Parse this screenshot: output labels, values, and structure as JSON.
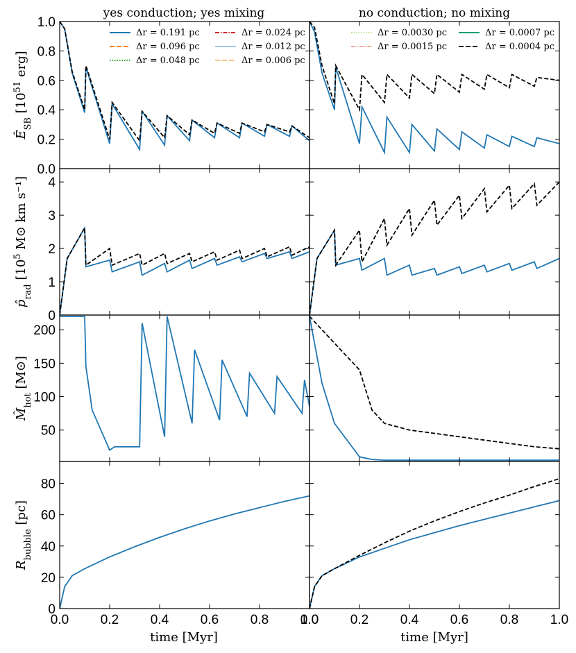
{
  "figure": {
    "col_titles": [
      "yes conduction;  yes mixing",
      "no conduction;  no mixing"
    ],
    "xlabel": "time [Myr]",
    "xticks": [
      "0.0",
      "0.2",
      "0.4",
      "0.6",
      "0.8",
      "1.0"
    ],
    "row_ylabels": [
      {
        "main": "Ê",
        "sub": "SB",
        "rest": " [10",
        "sup": "51",
        "tail": " erg]"
      },
      {
        "main": "p̂",
        "sub": "rad",
        "rest": " [10",
        "sup": "5",
        "tail": " M⊙ km s⁻¹]"
      },
      {
        "main": "M̂",
        "sub": "hot",
        "rest": " [M⊙]",
        "sup": "",
        "tail": ""
      },
      {
        "main": "R",
        "sub": "bubble",
        "rest": " [pc]",
        "sup": "",
        "tail": ""
      }
    ],
    "row_yticks": [
      [
        "0.0",
        "0.2",
        "0.4",
        "0.6",
        "0.8",
        "1.0"
      ],
      [
        "0",
        "1",
        "2",
        "3",
        "4"
      ],
      [
        "50",
        "100",
        "150",
        "200"
      ],
      [
        "0",
        "20",
        "40",
        "60",
        "80"
      ]
    ]
  },
  "legend_left": [
    {
      "label": "Δr = 0.191 pc",
      "color": "#1f77b4",
      "dash": ""
    },
    {
      "label": "Δr = 0.024 pc",
      "color": "#d62728",
      "dash": "6,2,1.5,2"
    },
    {
      "label": "Δr = 0.096 pc",
      "color": "#ff7f0e",
      "dash": "7,3"
    },
    {
      "label": "Δr = 0.012 pc",
      "color": "#9ecae1",
      "dash": ""
    },
    {
      "label": "Δr = 0.048 pc",
      "color": "#2ca02c",
      "dash": "1.5,2"
    },
    {
      "label": "Δr = 0.006 pc",
      "color": "#fdc086",
      "dash": "7,3"
    }
  ],
  "legend_right": [
    {
      "label": "Δr = 0.0030 pc",
      "color": "#b7e08e",
      "dash": "1.5,2"
    },
    {
      "label": "Δr = 0.0007 pc",
      "color": "#1b9e77",
      "dash": ""
    },
    {
      "label": "Δr = 0.0015 pc",
      "color": "#f4a5a0",
      "dash": "6,2,1.5,2"
    },
    {
      "label": "Δr = 0.0004 pc",
      "color": "#000000",
      "dash": "7,3"
    }
  ],
  "chart_data": [
    {
      "type": "line",
      "panel": "E_SB yes conduction yes mixing",
      "x": [
        0,
        0.02,
        0.05,
        0.1,
        0.105,
        0.2,
        0.21,
        0.32,
        0.33,
        0.42,
        0.43,
        0.52,
        0.53,
        0.62,
        0.63,
        0.72,
        0.73,
        0.82,
        0.83,
        0.92,
        0.93,
        1.0
      ],
      "series": [
        {
          "name": "Δr = 0.191 pc",
          "values": [
            1.0,
            0.95,
            0.65,
            0.38,
            0.69,
            0.17,
            0.44,
            0.13,
            0.39,
            0.16,
            0.36,
            0.19,
            0.33,
            0.21,
            0.31,
            0.21,
            0.31,
            0.22,
            0.3,
            0.22,
            0.29,
            0.19
          ]
        },
        {
          "name": "Δr = 0.006 pc",
          "values": [
            1.0,
            0.95,
            0.66,
            0.4,
            0.7,
            0.2,
            0.45,
            0.19,
            0.39,
            0.21,
            0.36,
            0.23,
            0.33,
            0.24,
            0.31,
            0.24,
            0.31,
            0.25,
            0.3,
            0.25,
            0.29,
            0.21
          ]
        }
      ],
      "xlim": [
        0,
        1
      ],
      "ylim": [
        0,
        1
      ]
    },
    {
      "type": "line",
      "panel": "E_SB no conduction no mixing",
      "x": [
        0,
        0.02,
        0.05,
        0.1,
        0.105,
        0.2,
        0.21,
        0.3,
        0.31,
        0.4,
        0.41,
        0.5,
        0.51,
        0.6,
        0.61,
        0.7,
        0.71,
        0.8,
        0.81,
        0.9,
        0.91,
        1.0
      ],
      "series": [
        {
          "name": "Δr = 0.191 pc",
          "values": [
            1.0,
            0.93,
            0.65,
            0.4,
            0.69,
            0.17,
            0.42,
            0.11,
            0.35,
            0.11,
            0.3,
            0.12,
            0.27,
            0.13,
            0.25,
            0.14,
            0.23,
            0.15,
            0.22,
            0.15,
            0.21,
            0.17
          ]
        },
        {
          "name": "Δr = 0.0004 pc",
          "values": [
            1.0,
            0.96,
            0.7,
            0.44,
            0.7,
            0.4,
            0.64,
            0.45,
            0.64,
            0.48,
            0.64,
            0.51,
            0.64,
            0.52,
            0.64,
            0.54,
            0.64,
            0.55,
            0.64,
            0.56,
            0.62,
            0.6
          ]
        }
      ],
      "xlim": [
        0,
        1
      ],
      "ylim": [
        0,
        1
      ]
    },
    {
      "type": "line",
      "panel": "p_rad yes conduction yes mixing",
      "x": [
        0,
        0.03,
        0.1,
        0.105,
        0.2,
        0.21,
        0.32,
        0.33,
        0.42,
        0.43,
        0.52,
        0.53,
        0.62,
        0.63,
        0.72,
        0.73,
        0.82,
        0.83,
        0.92,
        0.93,
        1.0
      ],
      "series": [
        {
          "name": "Δr = 0.191 pc",
          "values": [
            0,
            1.7,
            2.62,
            1.45,
            1.65,
            1.3,
            1.6,
            1.2,
            1.55,
            1.3,
            1.65,
            1.4,
            1.7,
            1.5,
            1.75,
            1.6,
            1.85,
            1.7,
            1.9,
            1.7,
            1.9
          ]
        },
        {
          "name": "Δr = 0.024 pc",
          "values": [
            0,
            1.7,
            2.62,
            1.5,
            2.0,
            1.5,
            1.85,
            1.5,
            1.85,
            1.55,
            1.85,
            1.6,
            1.9,
            1.65,
            1.95,
            1.7,
            2.0,
            1.75,
            2.05,
            1.8,
            2.05
          ]
        }
      ],
      "xlim": [
        0,
        1
      ],
      "ylim": [
        0,
        4.4
      ]
    },
    {
      "type": "line",
      "panel": "p_rad no conduction no mixing",
      "x": [
        0,
        0.03,
        0.1,
        0.105,
        0.2,
        0.21,
        0.3,
        0.31,
        0.4,
        0.41,
        0.5,
        0.51,
        0.6,
        0.61,
        0.7,
        0.71,
        0.8,
        0.81,
        0.9,
        0.91,
        1.0
      ],
      "series": [
        {
          "name": "Δr = 0.191 pc",
          "values": [
            0,
            1.7,
            2.55,
            1.5,
            1.7,
            1.35,
            1.7,
            1.2,
            1.5,
            1.2,
            1.4,
            1.2,
            1.45,
            1.25,
            1.5,
            1.3,
            1.55,
            1.35,
            1.6,
            1.4,
            1.7
          ]
        },
        {
          "name": "Δr = 0.0004 pc",
          "values": [
            0,
            1.7,
            2.55,
            1.5,
            2.55,
            1.6,
            2.9,
            2.1,
            3.2,
            2.4,
            3.45,
            2.7,
            3.6,
            2.9,
            3.8,
            3.1,
            3.9,
            3.2,
            3.95,
            3.3,
            4.0
          ]
        }
      ],
      "xlim": [
        0,
        1
      ],
      "ylim": [
        0,
        4.4
      ]
    },
    {
      "type": "line",
      "panel": "M_hot yes conduction yes mixing",
      "x": [
        0,
        0.1,
        0.105,
        0.13,
        0.2,
        0.22,
        0.32,
        0.33,
        0.42,
        0.43,
        0.53,
        0.54,
        0.64,
        0.65,
        0.75,
        0.76,
        0.86,
        0.87,
        0.97,
        0.98,
        1.0
      ],
      "series": [
        {
          "name": "Δr = 0.191 pc",
          "values": [
            220,
            220,
            145,
            80,
            20,
            25,
            25,
            210,
            40,
            220,
            60,
            170,
            65,
            155,
            70,
            135,
            75,
            130,
            75,
            125,
            85
          ]
        }
      ],
      "xlim": [
        0,
        1
      ],
      "ylim": [
        3,
        222
      ]
    },
    {
      "type": "line",
      "panel": "M_hot no conduction no mixing",
      "x": [
        0,
        0.05,
        0.1,
        0.2,
        0.25,
        0.3,
        0.4,
        0.5,
        0.6,
        0.7,
        0.8,
        0.9,
        1.0
      ],
      "series": [
        {
          "name": "Δr = 0.191 pc",
          "values": [
            220,
            120,
            60,
            10,
            6,
            5,
            5,
            5,
            5,
            5,
            5,
            5,
            5
          ]
        },
        {
          "name": "Δr = 0.0004 pc",
          "values": [
            220,
            200,
            180,
            140,
            80,
            60,
            50,
            45,
            40,
            35,
            30,
            25,
            22
          ]
        }
      ],
      "xlim": [
        0,
        1
      ],
      "ylim": [
        3,
        222
      ]
    },
    {
      "type": "line",
      "panel": "R_bubble yes conduction yes mixing",
      "x": [
        0,
        0.02,
        0.05,
        0.1,
        0.2,
        0.3,
        0.4,
        0.5,
        0.6,
        0.7,
        0.8,
        0.9,
        1.0
      ],
      "series": [
        {
          "name": "Δr = 0.191 pc",
          "values": [
            0,
            14,
            21,
            25.5,
            33,
            39.5,
            45.5,
            51,
            56,
            60.5,
            64.5,
            68.5,
            72
          ]
        }
      ],
      "xlim": [
        0,
        1
      ],
      "ylim": [
        0,
        94
      ]
    },
    {
      "type": "line",
      "panel": "R_bubble no conduction no mixing",
      "x": [
        0,
        0.02,
        0.05,
        0.1,
        0.2,
        0.3,
        0.4,
        0.5,
        0.6,
        0.7,
        0.8,
        0.9,
        1.0
      ],
      "series": [
        {
          "name": "Δr = 0.191 pc",
          "values": [
            0,
            14,
            21,
            25.5,
            33,
            38.5,
            44,
            48.5,
            53,
            57,
            61,
            65,
            69
          ]
        },
        {
          "name": "Δr = 0.0004 pc",
          "values": [
            0,
            14,
            21,
            25.5,
            34,
            42,
            49.5,
            56,
            62,
            67.5,
            72.5,
            78,
            83
          ]
        }
      ],
      "xlim": [
        0,
        1
      ],
      "ylim": [
        0,
        94
      ]
    }
  ]
}
